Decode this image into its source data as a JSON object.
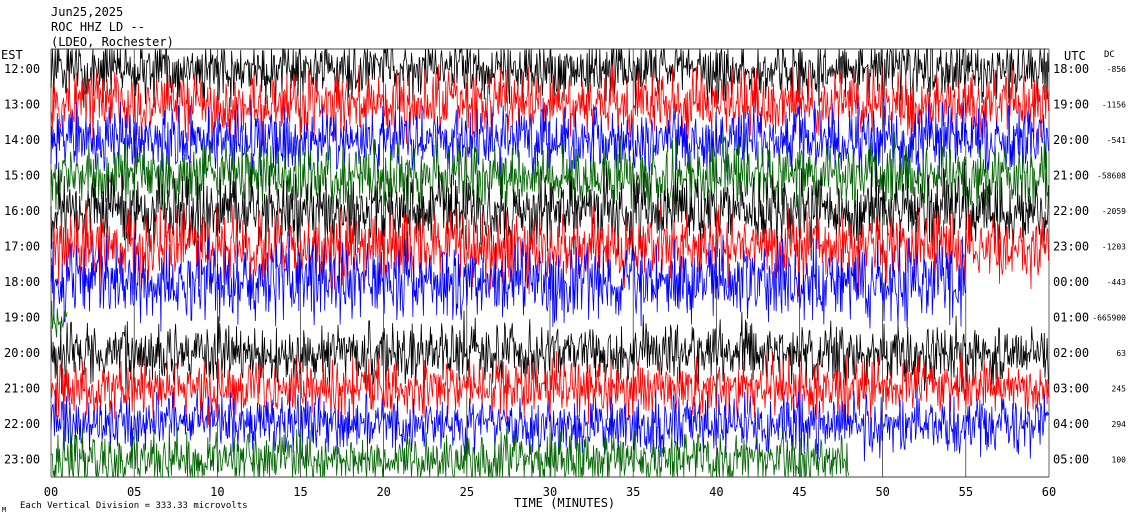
{
  "header": {
    "date": "Jun25,2025",
    "station": "ROC HHZ LD --",
    "network": "(LDEO, Rochester)"
  },
  "left_axis_label": "EST",
  "right_axis_label": "UTC",
  "dc_label": "DC",
  "xlabel": "TIME (MINUTES)",
  "footer_scale": "Each Vertical Division =  333.33 microvolts",
  "footer_mark": "M",
  "colors": {
    "black": "#000000",
    "red": "#ff0000",
    "blue": "#0000ff",
    "green": "#006400",
    "grid": "#000000",
    "background": "#ffffff"
  },
  "chart_data": {
    "type": "line",
    "title": "Jun25,2025 ROC HHZ LD -- (LDEO, Rochester)",
    "xlabel": "TIME (MINUTES)",
    "xlim": [
      0,
      60
    ],
    "x_ticks": [
      "00",
      "05",
      "10",
      "15",
      "20",
      "25",
      "30",
      "35",
      "40",
      "45",
      "50",
      "55",
      "60"
    ],
    "grid": true,
    "rows": [
      {
        "est": "12:00",
        "utc": "18:00",
        "dc": "-856",
        "color": "black",
        "end_minute": 60,
        "amplitude": 0.42
      },
      {
        "est": "13:00",
        "utc": "19:00",
        "dc": "-1156",
        "color": "red",
        "end_minute": 60,
        "amplitude": 0.45
      },
      {
        "est": "14:00",
        "utc": "20:00",
        "dc": "-541",
        "color": "blue",
        "end_minute": 60,
        "amplitude": 0.45
      },
      {
        "est": "15:00",
        "utc": "21:00",
        "dc": "-58608",
        "color": "green",
        "end_minute": 60,
        "amplitude": 0.45
      },
      {
        "est": "16:00",
        "utc": "22:00",
        "dc": "-2059",
        "color": "black",
        "end_minute": 60,
        "amplitude": 0.5
      },
      {
        "est": "17:00",
        "utc": "23:00",
        "dc": "-1203",
        "color": "red",
        "end_minute": 60,
        "amplitude": 0.5
      },
      {
        "est": "18:00",
        "utc": "00:00",
        "dc": "-443",
        "color": "blue",
        "end_minute": 55,
        "amplitude": 0.55
      },
      {
        "est": "19:00",
        "utc": "01:00",
        "dc": "-665900",
        "color": "green",
        "end_minute": 1,
        "amplitude": 0.2
      },
      {
        "est": "20:00",
        "utc": "02:00",
        "dc": "63",
        "color": "black",
        "end_minute": 60,
        "amplitude": 0.42
      },
      {
        "est": "21:00",
        "utc": "03:00",
        "dc": "245",
        "color": "red",
        "end_minute": 60,
        "amplitude": 0.4
      },
      {
        "est": "22:00",
        "utc": "04:00",
        "dc": "294",
        "color": "blue",
        "end_minute": 60,
        "amplitude": 0.38
      },
      {
        "est": "23:00",
        "utc": "05:00",
        "dc": "100",
        "color": "green",
        "end_minute": 48,
        "amplitude": 0.38
      }
    ],
    "trace_units": "seismograph counts (unlabeled)",
    "vertical_division_microvolts": 333.33
  }
}
